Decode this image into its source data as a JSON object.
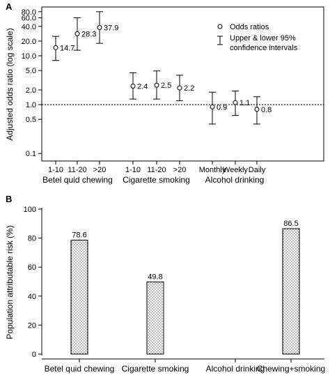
{
  "chart_data": [
    {
      "panel": "A",
      "type": "scatter",
      "ylabel": "Adjusted odds ratio (log scale)",
      "yscale": "log",
      "ylim": [
        0.07,
        100
      ],
      "yticks": [
        "80.0",
        "60.0",
        "40.0",
        "20.0",
        "10.0",
        "5.0",
        "2.0",
        "1.0",
        "0.5",
        "0.1"
      ],
      "ytick_values": [
        80,
        60,
        40,
        20,
        10,
        5,
        2,
        1,
        0.5,
        0.1
      ],
      "reference_line": 1.0,
      "grid": false,
      "legend_position": "top-right",
      "legend": [
        "Odds ratios",
        "Upper & lower 95%",
        "confidence intervals"
      ],
      "groups": [
        {
          "label": "Betel quid chewing",
          "points": [
            {
              "x": "1-10",
              "y": 14.7,
              "lo": 8,
              "hi": 25,
              "label": "14.7"
            },
            {
              "x": "11-20",
              "y": 28.3,
              "lo": 13,
              "hi": 60,
              "label": "28.3"
            },
            {
              "x": ">20",
              "y": 37.9,
              "lo": 18,
              "hi": 80,
              "label": "37.9"
            }
          ]
        },
        {
          "label": "Cigarette smoking",
          "points": [
            {
              "x": "1-10",
              "y": 2.4,
              "lo": 1.3,
              "hi": 4.5,
              "label": "2.4"
            },
            {
              "x": "11-20",
              "y": 2.5,
              "lo": 1.3,
              "hi": 4.9,
              "label": "2.5"
            },
            {
              "x": ">20",
              "y": 2.2,
              "lo": 1.2,
              "hi": 4.0,
              "label": "2.2"
            }
          ]
        },
        {
          "label": "Alcohol drinking",
          "points": [
            {
              "x": "Monthly",
              "y": 0.9,
              "lo": 0.4,
              "hi": 1.8,
              "label": "0.9"
            },
            {
              "x": "Weekly",
              "y": 1.1,
              "lo": 0.6,
              "hi": 1.9,
              "label": "1.1"
            },
            {
              "x": "Daily",
              "y": 0.8,
              "lo": 0.4,
              "hi": 1.45,
              "label": "0.8"
            }
          ]
        }
      ]
    },
    {
      "panel": "B",
      "type": "bar",
      "ylabel": "Population attributable risk (%)",
      "ylim": [
        0,
        100
      ],
      "yticks": [
        "0",
        "20",
        "40",
        "60",
        "80",
        "100"
      ],
      "ytick_values": [
        0,
        20,
        40,
        60,
        80,
        100
      ],
      "grid": false,
      "categories": [
        "Betel quid chewing",
        "Cigarette smoking",
        "Alcohol drinking",
        "Chewing+smoking"
      ],
      "values": [
        78.6,
        49.8,
        0,
        86.5
      ],
      "value_labels": [
        "78.6",
        "49.8",
        "",
        "86.5"
      ],
      "bar_fill": "dotted"
    }
  ]
}
